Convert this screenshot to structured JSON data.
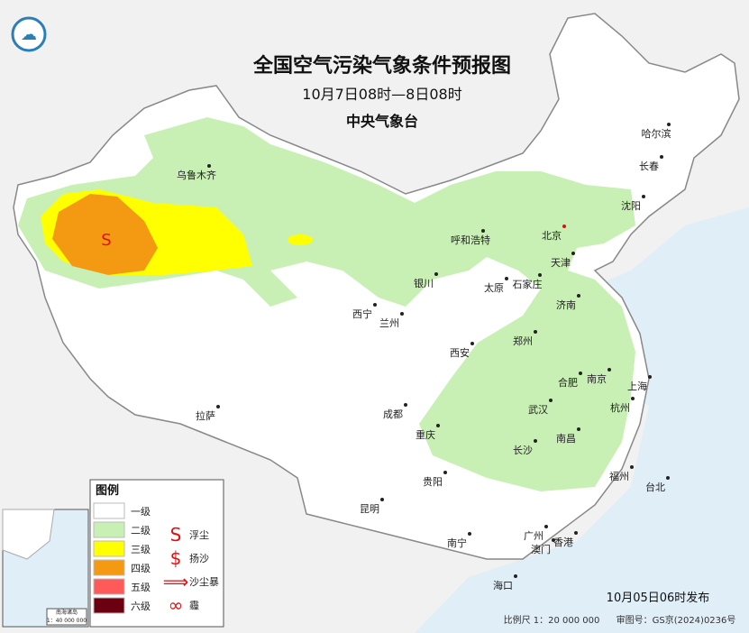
{
  "header": {
    "title": "全国空气污染气象条件预报图",
    "subtitle": "10月7日08时—8日08时",
    "issuer": "中央气象台"
  },
  "map_symbol": "S",
  "cities": [
    "乌鲁木齐",
    "哈尔滨",
    "长春",
    "沈阳",
    "呼和浩特",
    "北京",
    "天津",
    "银川",
    "太原",
    "石家庄",
    "济南",
    "西宁",
    "兰州",
    "西安",
    "郑州",
    "合肥",
    "南京",
    "上海",
    "杭州",
    "武汉",
    "拉萨",
    "成都",
    "重庆",
    "长沙",
    "南昌",
    "贵阳",
    "福州",
    "台北",
    "昆明",
    "南宁",
    "广州",
    "澳门",
    "香港",
    "海口"
  ],
  "legend": {
    "title": "图例",
    "levels": [
      "一级",
      "二级",
      "三级",
      "四级",
      "五级",
      "六级"
    ],
    "phenomena": [
      "浮尘",
      "扬沙",
      "沙尘暴",
      "霾"
    ]
  },
  "inset": {
    "label": "南海诸岛",
    "scale": "1：40 000 000"
  },
  "footer": {
    "issued": "10月05日06时发布",
    "scale": "比例尺 1：20 000 000",
    "review": "审图号：GS京(2024)0236号"
  }
}
